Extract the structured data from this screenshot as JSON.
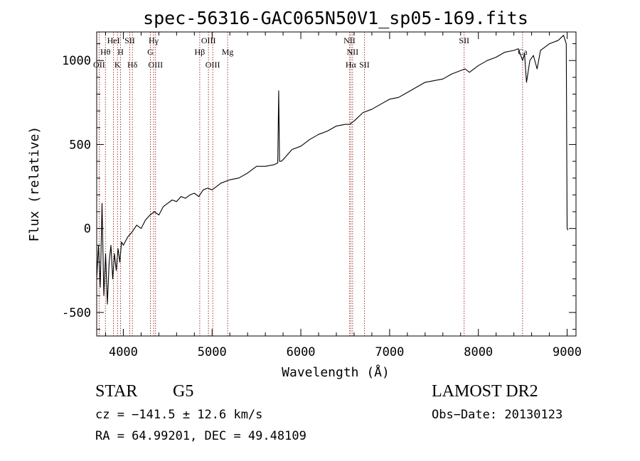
{
  "chart_data": {
    "type": "line",
    "title": "spec-56316-GAC065N50V1_sp05-169.fits",
    "xlabel": "Wavelength (Å)",
    "ylabel": "Flux (relative)",
    "xlim": [
      3700,
      9100
    ],
    "ylim": [
      -640,
      1170
    ],
    "xticks": [
      4000,
      5000,
      6000,
      7000,
      8000,
      9000
    ],
    "yticks": [
      -500,
      0,
      500,
      1000
    ],
    "grid": false,
    "line_color": "#000000",
    "marker_color": "#8b0000",
    "spectrum": {
      "x": [
        3700,
        3720,
        3740,
        3760,
        3780,
        3800,
        3820,
        3840,
        3860,
        3880,
        3900,
        3920,
        3940,
        3960,
        3980,
        4000,
        4050,
        4100,
        4150,
        4200,
        4250,
        4300,
        4350,
        4400,
        4450,
        4500,
        4550,
        4600,
        4650,
        4700,
        4750,
        4800,
        4850,
        4900,
        4950,
        5000,
        5100,
        5200,
        5300,
        5400,
        5500,
        5600,
        5700,
        5740,
        5750,
        5760,
        5780,
        5800,
        5900,
        6000,
        6100,
        6200,
        6300,
        6400,
        6500,
        6550,
        6600,
        6700,
        6800,
        6900,
        7000,
        7100,
        7200,
        7300,
        7400,
        7500,
        7600,
        7700,
        7800,
        7850,
        7900,
        8000,
        8100,
        8200,
        8300,
        8400,
        8450,
        8498,
        8520,
        8542,
        8580,
        8620,
        8662,
        8700,
        8800,
        8900,
        8960,
        8990,
        9000,
        9010
      ],
      "y": [
        -300,
        -100,
        -350,
        150,
        -400,
        -150,
        -450,
        -200,
        -100,
        -300,
        -150,
        -250,
        -120,
        -200,
        -80,
        -100,
        -50,
        -20,
        20,
        0,
        50,
        80,
        100,
        80,
        130,
        150,
        170,
        160,
        190,
        180,
        200,
        210,
        190,
        230,
        240,
        230,
        270,
        290,
        300,
        330,
        370,
        370,
        380,
        390,
        820,
        400,
        400,
        410,
        470,
        490,
        530,
        560,
        580,
        610,
        620,
        620,
        640,
        690,
        710,
        740,
        770,
        780,
        810,
        840,
        870,
        880,
        890,
        920,
        940,
        950,
        930,
        970,
        1000,
        1020,
        1050,
        1060,
        1070,
        1000,
        1040,
        870,
        1000,
        1030,
        950,
        1060,
        1100,
        1120,
        1150,
        1100,
        0,
        -10
      ]
    },
    "line_markers": [
      {
        "label": "OII",
        "x": 3727,
        "row": 3
      },
      {
        "label": "Hθ",
        "x": 3798,
        "row": 2
      },
      {
        "label": "HeI",
        "x": 3889,
        "row": 1
      },
      {
        "label": "K",
        "x": 3934,
        "row": 3
      },
      {
        "label": "H",
        "x": 3969,
        "row": 2
      },
      {
        "label": "SII",
        "x": 4072,
        "row": 1
      },
      {
        "label": "Hδ",
        "x": 4102,
        "row": 3
      },
      {
        "label": "Hγ",
        "x": 4341,
        "row": 1
      },
      {
        "label": "G",
        "x": 4305,
        "row": 2
      },
      {
        "label": "OIII",
        "x": 4363,
        "row": 3
      },
      {
        "label": "Hβ",
        "x": 4861,
        "row": 2
      },
      {
        "label": "OIII",
        "x": 4959,
        "row": 1
      },
      {
        "label": "OIII",
        "x": 5007,
        "row": 3
      },
      {
        "label": "Mg",
        "x": 5175,
        "row": 2
      },
      {
        "label": "NII",
        "x": 6548,
        "row": 1
      },
      {
        "label": "NII",
        "x": 6583,
        "row": 2
      },
      {
        "label": "Hα",
        "x": 6563,
        "row": 3
      },
      {
        "label": "SII",
        "x": 6716,
        "row": 3
      },
      {
        "label": "SII",
        "x": 7840,
        "row": 1
      },
      {
        "label": "Ca",
        "x": 8498,
        "row": 2
      }
    ]
  },
  "info": {
    "object_class": "STAR",
    "subclass": "G5",
    "cz": "cz = −141.5 ± 12.6 km/s",
    "coords": "RA =  64.99201, DEC =  49.48109",
    "survey": "LAMOST DR2",
    "obs_date": "Obs−Date: 20130123"
  }
}
